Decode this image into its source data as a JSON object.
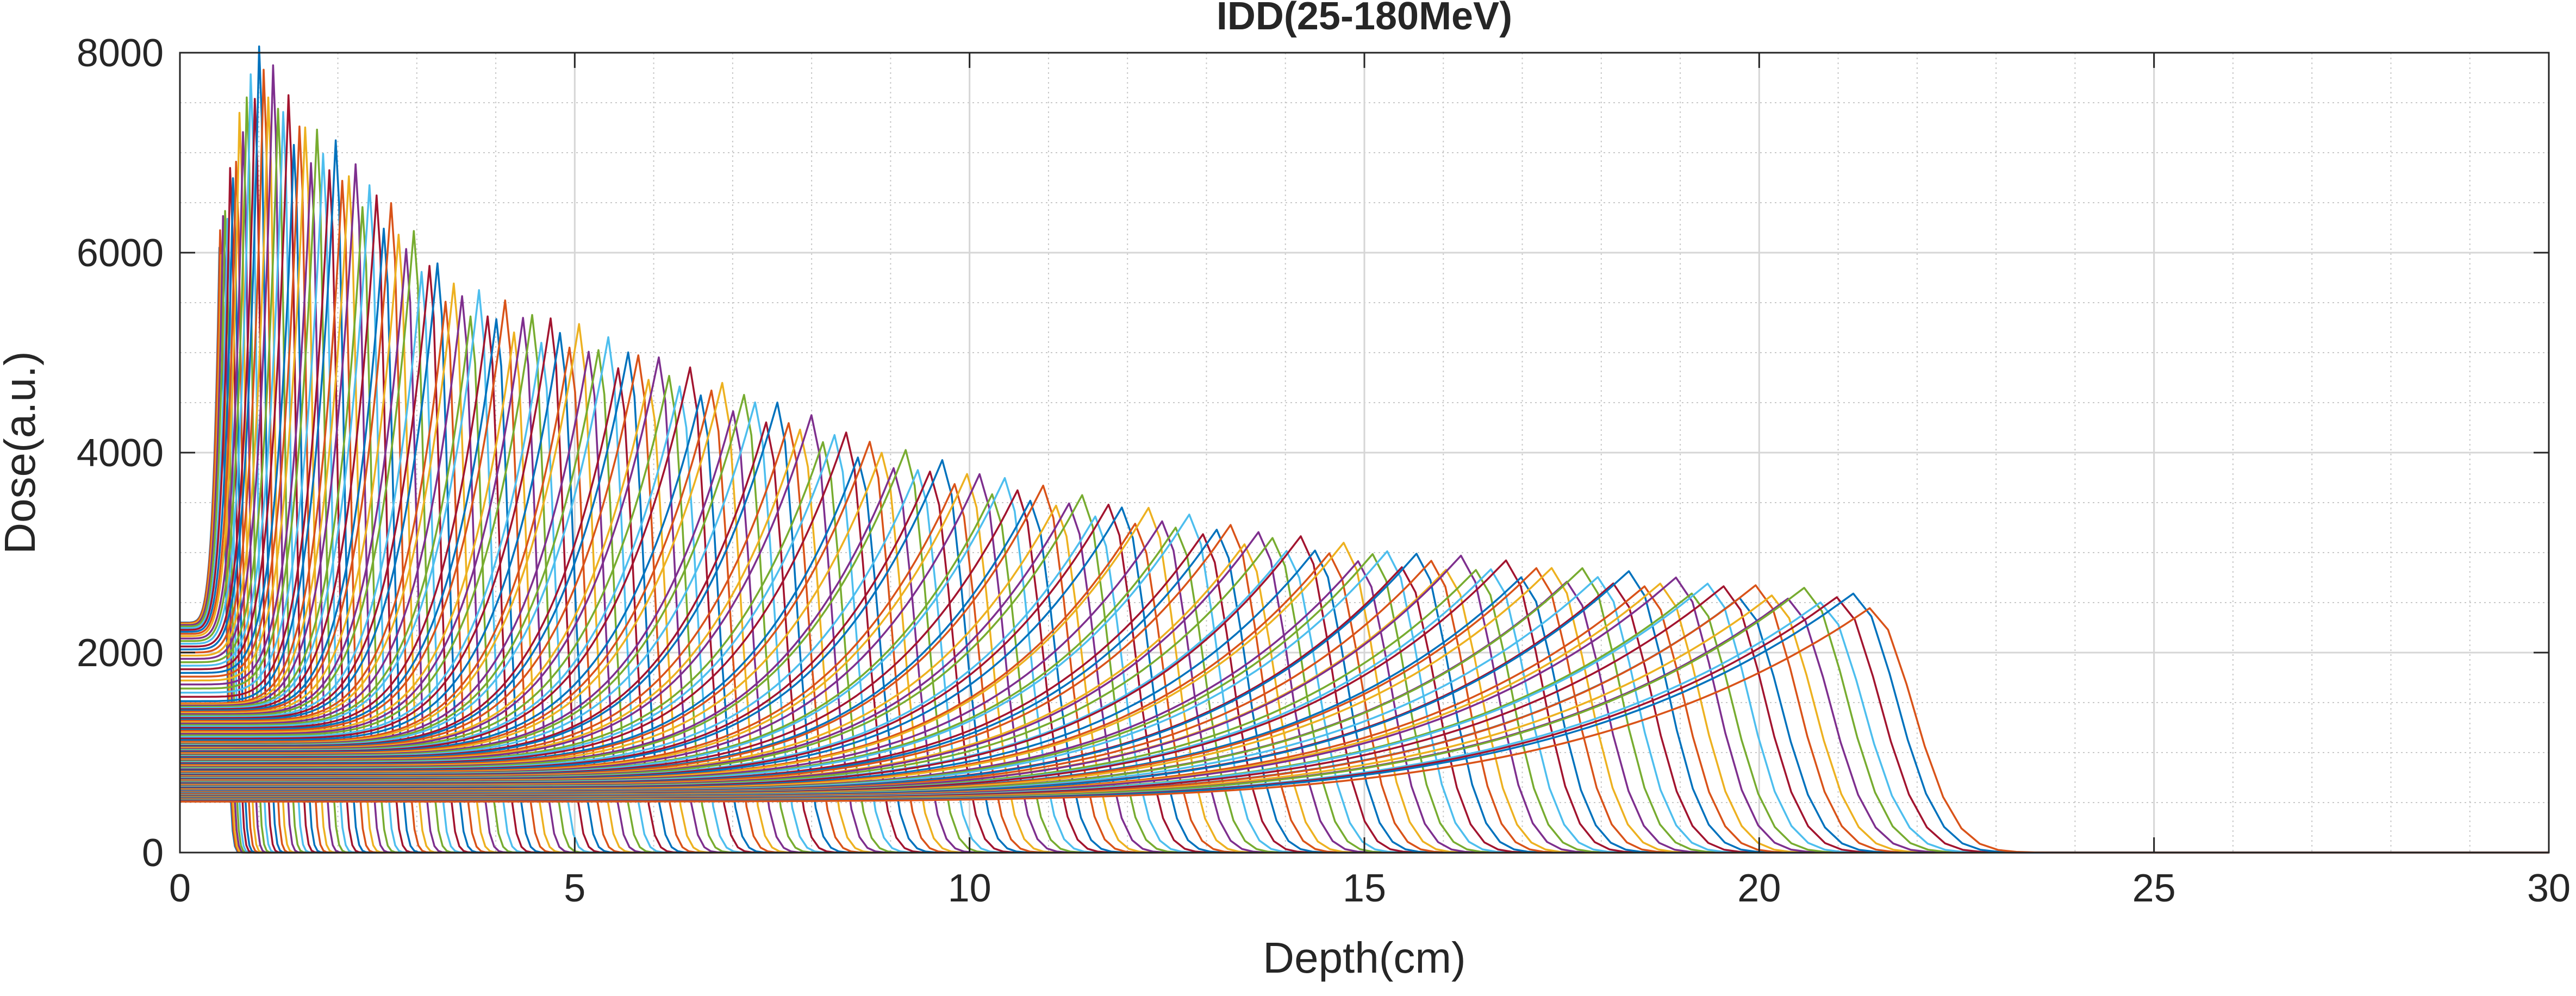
{
  "chart_data": {
    "type": "line",
    "title": "IDD(25-180MeV)",
    "xlabel": "Depth(cm)",
    "ylabel": "Dose(a.u.)",
    "xlim": [
      0,
      30
    ],
    "ylim": [
      0,
      8000
    ],
    "xticks": [
      0,
      5,
      10,
      15,
      20,
      25,
      30
    ],
    "yticks": [
      0,
      2000,
      4000,
      6000,
      8000
    ],
    "xtick_labels": [
      "0",
      "5",
      "10",
      "15",
      "20",
      "25",
      "30"
    ],
    "ytick_labels": [
      "0",
      "2000",
      "4000",
      "6000",
      "8000"
    ],
    "grid": "major and minor",
    "box": true,
    "legend": "none",
    "series_count": 156,
    "energy_range_MeV": [
      25,
      180
    ],
    "energy_step_MeV": 1,
    "palette": [
      "#0072BD",
      "#D95319",
      "#EDB120",
      "#7E2F8E",
      "#77AC30",
      "#4DBEEE",
      "#A2142F"
    ],
    "bragg_peaks": {
      "description": "Bragg peak (depth cm, peak dose) envelope; curves step ~1 MeV apart",
      "depth": [
        0.5,
        0.8,
        1.0,
        1.5,
        2.0,
        2.5,
        3.0,
        3.5,
        4.0,
        5.0,
        6.0,
        7.0,
        8.0,
        9.0,
        10.0,
        11.0,
        12.0,
        13.0,
        14.0,
        15.0,
        16.0,
        17.0,
        18.0,
        19.0,
        20.0,
        21.0,
        21.4
      ],
      "peak_dose": [
        6050,
        7400,
        7900,
        7200,
        6900,
        6500,
        6000,
        5560,
        5400,
        5150,
        4850,
        4550,
        4250,
        3950,
        3750,
        3550,
        3400,
        3250,
        3100,
        2980,
        2900,
        2830,
        2760,
        2680,
        2600,
        2550,
        2520
      ]
    },
    "entrance_dose": {
      "description": "Dose at zero depth vs Bragg peak depth",
      "peak_depth": [
        0.5,
        2.0,
        5.0,
        10.0,
        15.0,
        21.4
      ],
      "dose_at_zero": [
        2300,
        1500,
        1100,
        800,
        620,
        510
      ]
    },
    "after_peak_dose": 0
  }
}
